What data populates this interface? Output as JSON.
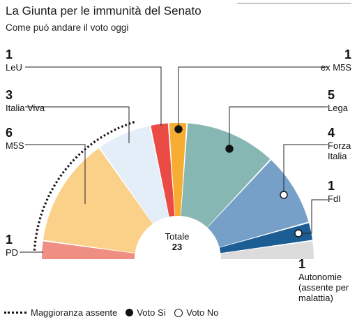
{
  "title": "La Giunta per le immunità del Senato",
  "subtitle": "Come può andare il voto oggi",
  "chart_data": {
    "type": "pie",
    "shape": "semicircle",
    "total_label": "Totale",
    "total": "23",
    "slices": [
      {
        "name": "PD",
        "count": 1,
        "color": "#ef8f84",
        "vote": ""
      },
      {
        "name": "M5S",
        "count": 6,
        "color": "#fbd088",
        "vote": ""
      },
      {
        "name": "Italia Viva",
        "count": 3,
        "color": "#e4eef8",
        "vote": ""
      },
      {
        "name": "LeU",
        "count": 1,
        "color": "#ea4b45",
        "vote": ""
      },
      {
        "name": "ex M5S",
        "count": 1,
        "color": "#f7ad33",
        "vote": "si"
      },
      {
        "name": "Lega",
        "count": 5,
        "color": "#87b7b3",
        "vote": "si"
      },
      {
        "name": "Forza Italia",
        "count": 4,
        "color": "#77a0c9",
        "vote": "no"
      },
      {
        "name": "FdI",
        "count": 1,
        "color": "#1c5d94",
        "vote": "no"
      },
      {
        "name": "Autonomie (assente per malattia)",
        "count": 1,
        "color": "#dcdcdc",
        "vote": ""
      }
    ],
    "labels": [
      {
        "num": "1",
        "lines": [
          "PD"
        ]
      },
      {
        "num": "6",
        "lines": [
          "M5S"
        ]
      },
      {
        "num": "3",
        "lines": [
          "Italia Viva"
        ]
      },
      {
        "num": "1",
        "lines": [
          "LeU"
        ]
      },
      {
        "num": "1",
        "lines": [
          "ex M5S"
        ]
      },
      {
        "num": "5",
        "lines": [
          "Lega"
        ]
      },
      {
        "num": "4",
        "lines": [
          "Forza",
          "Italia"
        ]
      },
      {
        "num": "1",
        "lines": [
          "FdI"
        ]
      },
      {
        "num": "1",
        "lines": [
          "Autonomie",
          "(assente per",
          "malattia)"
        ]
      }
    ]
  },
  "legend": {
    "majority_absent": "Maggioranza assente",
    "vote_yes": "Voto Sì",
    "vote_no": "Voto No"
  }
}
